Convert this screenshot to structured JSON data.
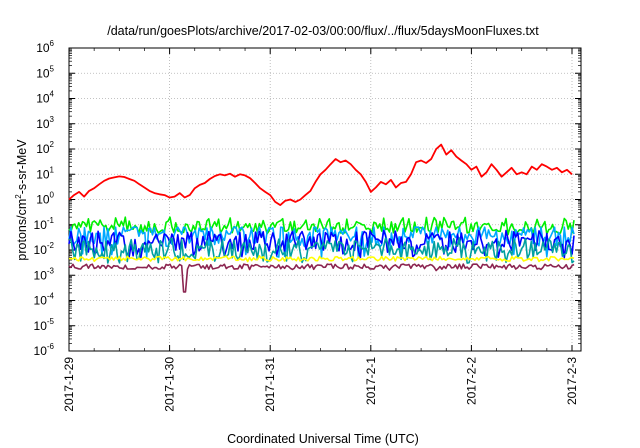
{
  "chart_data": {
    "type": "line",
    "title": "/data/run/goesPlots/archive/2017-02-03/00:00/flux/../flux/5daysMoonFluxes.txt",
    "xlabel": "Coordinated Universal Time (UTC)",
    "ylabel": "protons/cm²-s-sr-MeV",
    "ylabel_parts": {
      "before": "protons/cm",
      "sup": "2",
      "after": "-s-sr-MeV"
    },
    "y_scale": "log",
    "ylim": [
      1e-06,
      1000000.0
    ],
    "y_ticks": [
      {
        "base": "10",
        "exp": "6"
      },
      {
        "base": "10",
        "exp": "5"
      },
      {
        "base": "10",
        "exp": "4"
      },
      {
        "base": "10",
        "exp": "3"
      },
      {
        "base": "10",
        "exp": "2"
      },
      {
        "base": "10",
        "exp": "1"
      },
      {
        "base": "10",
        "exp": "0"
      },
      {
        "base": "10",
        "exp": "-1"
      },
      {
        "base": "10",
        "exp": "-2"
      },
      {
        "base": "10",
        "exp": "-3"
      },
      {
        "base": "10",
        "exp": "-4"
      },
      {
        "base": "10",
        "exp": "-5"
      },
      {
        "base": "10",
        "exp": "-6"
      }
    ],
    "x_ticks": [
      "2017-1-29",
      "2017-1-30",
      "2017-1-31",
      "2017-2-1",
      "2017-2-2",
      "2017-2-3"
    ],
    "xlim": [
      "2017-01-29",
      "2017-02-03 00:10"
    ],
    "grid": true,
    "series": [
      {
        "color": "#ff0000",
        "values": [
          [
            0.0,
            1.0
          ],
          [
            0.05,
            1.5
          ],
          [
            0.1,
            2.0
          ],
          [
            0.15,
            1.3
          ],
          [
            0.2,
            2.2
          ],
          [
            0.25,
            2.8
          ],
          [
            0.3,
            4.0
          ],
          [
            0.35,
            5.5
          ],
          [
            0.4,
            6.8
          ],
          [
            0.45,
            7.5
          ],
          [
            0.5,
            8.2
          ],
          [
            0.55,
            7.8
          ],
          [
            0.6,
            6.5
          ],
          [
            0.65,
            5.5
          ],
          [
            0.7,
            4.0
          ],
          [
            0.75,
            3.0
          ],
          [
            0.8,
            2.2
          ],
          [
            0.85,
            1.8
          ],
          [
            0.9,
            1.6
          ],
          [
            0.95,
            1.5
          ],
          [
            1.0,
            1.2
          ],
          [
            1.05,
            1.3
          ],
          [
            1.1,
            1.8
          ],
          [
            1.15,
            1.2
          ],
          [
            1.2,
            1.5
          ],
          [
            1.25,
            2.8
          ],
          [
            1.3,
            3.8
          ],
          [
            1.35,
            4.5
          ],
          [
            1.4,
            6.5
          ],
          [
            1.45,
            8.5
          ],
          [
            1.5,
            10.0
          ],
          [
            1.55,
            9.0
          ],
          [
            1.6,
            10.5
          ],
          [
            1.65,
            8.0
          ],
          [
            1.7,
            10.0
          ],
          [
            1.75,
            9.0
          ],
          [
            1.8,
            7.0
          ],
          [
            1.85,
            4.5
          ],
          [
            1.9,
            2.8
          ],
          [
            1.95,
            2.0
          ],
          [
            2.0,
            1.5
          ],
          [
            2.05,
            0.8
          ],
          [
            2.1,
            0.6
          ],
          [
            2.15,
            0.9
          ],
          [
            2.2,
            1.0
          ],
          [
            2.25,
            0.8
          ],
          [
            2.3,
            1.0
          ],
          [
            2.35,
            1.5
          ],
          [
            2.4,
            2.2
          ],
          [
            2.45,
            5.0
          ],
          [
            2.5,
            10.0
          ],
          [
            2.55,
            15.0
          ],
          [
            2.6,
            25.0
          ],
          [
            2.65,
            40.0
          ],
          [
            2.7,
            30.0
          ],
          [
            2.75,
            35.0
          ],
          [
            2.8,
            25.0
          ],
          [
            2.85,
            15.0
          ],
          [
            2.9,
            10.0
          ],
          [
            2.95,
            5.0
          ],
          [
            3.0,
            2.0
          ],
          [
            3.05,
            3.0
          ],
          [
            3.1,
            5.0
          ],
          [
            3.15,
            4.0
          ],
          [
            3.2,
            6.0
          ],
          [
            3.25,
            3.0
          ],
          [
            3.3,
            4.5
          ],
          [
            3.35,
            5.0
          ],
          [
            3.4,
            10.0
          ],
          [
            3.45,
            30.0
          ],
          [
            3.5,
            35.0
          ],
          [
            3.55,
            28.0
          ],
          [
            3.6,
            40.0
          ],
          [
            3.65,
            100.0
          ],
          [
            3.7,
            150.0
          ],
          [
            3.75,
            60.0
          ],
          [
            3.8,
            90.0
          ],
          [
            3.85,
            50.0
          ],
          [
            3.9,
            35.0
          ],
          [
            3.95,
            25.0
          ],
          [
            4.0,
            15.0
          ],
          [
            4.05,
            20.0
          ],
          [
            4.1,
            8.0
          ],
          [
            4.15,
            12.0
          ],
          [
            4.2,
            25.0
          ],
          [
            4.25,
            15.0
          ],
          [
            4.3,
            8.0
          ],
          [
            4.35,
            12.0
          ],
          [
            4.4,
            18.0
          ],
          [
            4.45,
            10.0
          ],
          [
            4.5,
            12.0
          ],
          [
            4.55,
            10.0
          ],
          [
            4.6,
            20.0
          ],
          [
            4.65,
            15.0
          ],
          [
            4.7,
            25.0
          ],
          [
            4.75,
            20.0
          ],
          [
            4.8,
            15.0
          ],
          [
            4.85,
            18.0
          ],
          [
            4.9,
            12.0
          ],
          [
            4.95,
            15.0
          ],
          [
            5.0,
            10.0
          ]
        ]
      },
      {
        "color": "#00ee00",
        "base": 0.085,
        "min": 0.04,
        "max": 0.2
      },
      {
        "color": "#00a8ff",
        "base": 0.035,
        "min": 0.005,
        "max": 0.08
      },
      {
        "color": "#0000ff",
        "base": 0.02,
        "min": 0.005,
        "max": 0.06
      },
      {
        "color": "#00a0a0",
        "base": 0.01,
        "min": 0.003,
        "max": 0.03
      },
      {
        "color": "#ffff00",
        "base": 0.0045,
        "min": 0.0035,
        "max": 0.006
      },
      {
        "color": "#8b2550",
        "base": 0.0022,
        "min": 0.0015,
        "max": 0.0028,
        "dip": [
          1.15,
          0.00022
        ]
      }
    ]
  }
}
